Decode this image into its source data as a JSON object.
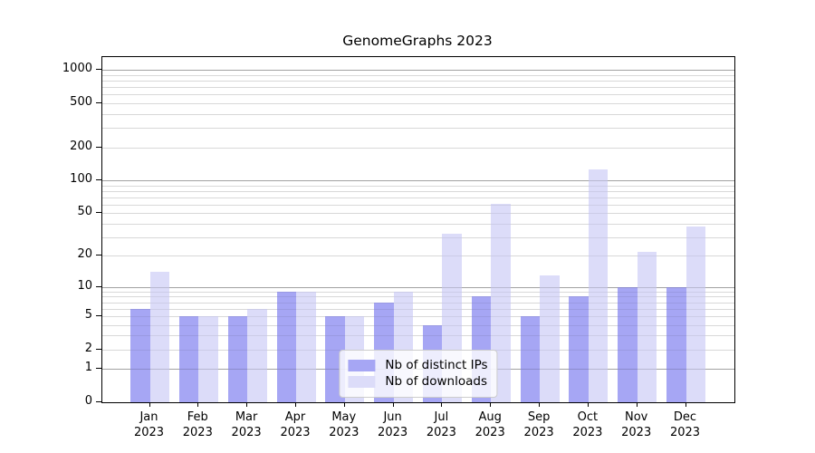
{
  "chart_data": {
    "type": "bar",
    "title": "GenomeGraphs 2023",
    "categories": [
      "Jan 2023",
      "Feb 2023",
      "Mar 2023",
      "Apr 2023",
      "May 2023",
      "Jun 2023",
      "Jul 2023",
      "Aug 2023",
      "Sep 2023",
      "Oct 2023",
      "Nov 2023",
      "Dec 2023"
    ],
    "series": [
      {
        "name": "Nb of distinct IPs",
        "color": "#a6a6f4",
        "values": [
          6,
          5,
          5,
          9,
          5,
          7,
          4,
          8,
          5,
          8,
          10,
          10
        ]
      },
      {
        "name": "Nb of downloads",
        "color": "#dcdcf9",
        "values": [
          14,
          5,
          6,
          9,
          5,
          9,
          32,
          61,
          13,
          126,
          22,
          38
        ]
      }
    ],
    "yscale": "log1p",
    "yticks": [
      0,
      1,
      2,
      5,
      10,
      20,
      50,
      100,
      200,
      500,
      1000
    ],
    "ylim": [
      0,
      1310
    ],
    "grid": "horizontal, log decades major + log minors",
    "legend_position": "lower center",
    "xlabel": "",
    "ylabel": ""
  }
}
